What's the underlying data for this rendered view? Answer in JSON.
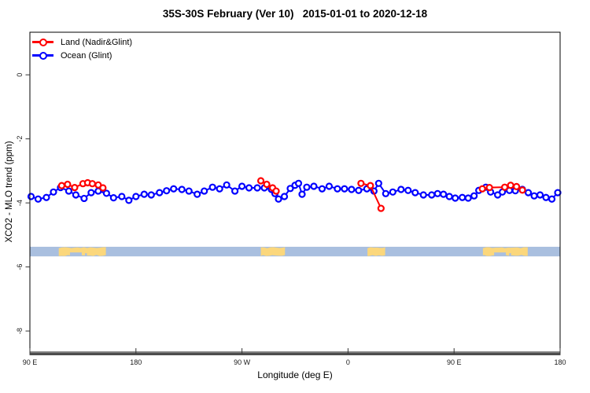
{
  "chart_data": {
    "type": "line",
    "title": "35S-30S February (Ver 10)   2015-01-01 to 2020-12-18",
    "xlabel": "Longitude (deg E)",
    "ylabel": "XCO2 - MLO trend (ppm)",
    "xlim": [
      90,
      540
    ],
    "ylim": [
      -8.66,
      1.33
    ],
    "grid": false,
    "x_ticks": [
      {
        "value": 90,
        "label": "90 E"
      },
      {
        "value": 180,
        "label": "180"
      },
      {
        "value": 270,
        "label": "90 W"
      },
      {
        "value": 360,
        "label": "0"
      },
      {
        "value": 450,
        "label": "90 E"
      },
      {
        "value": 540,
        "label": "180"
      }
    ],
    "y_ticks": [
      {
        "value": 0,
        "label": "0"
      },
      {
        "value": -2,
        "label": "-2"
      },
      {
        "value": -4,
        "label": "-4"
      },
      {
        "value": -6,
        "label": "-6"
      },
      {
        "value": -8,
        "label": "-8"
      }
    ],
    "legend_position": "top-left",
    "legend": [
      {
        "label": "Land (Nadir&Glint)",
        "color": "#FF0000"
      },
      {
        "label": "Ocean (Glint)",
        "color": "#0000FF"
      }
    ],
    "axis_colors": {
      "box": "#000000",
      "baseline": "#4D4D4D",
      "tick_label": "#1A1A1A"
    },
    "marker": {
      "shape": "open-circle",
      "radius": 3.5,
      "stroke_width": 2.2,
      "line_width": 2
    },
    "series": [
      {
        "name": "Ocean (Glint)",
        "color": "#0000FF",
        "segments": [
          [
            [
              91,
              -3.8
            ],
            [
              97,
              -3.88
            ],
            [
              104,
              -3.83
            ],
            [
              110,
              -3.66
            ],
            [
              116,
              -3.52
            ],
            [
              123,
              -3.63
            ],
            [
              129,
              -3.75
            ],
            [
              136,
              -3.86
            ],
            [
              142,
              -3.68
            ],
            [
              148,
              -3.63
            ],
            [
              155,
              -3.7
            ],
            [
              161,
              -3.84
            ],
            [
              168,
              -3.8
            ],
            [
              174,
              -3.92
            ],
            [
              180,
              -3.8
            ],
            [
              187,
              -3.73
            ],
            [
              193,
              -3.75
            ],
            [
              200,
              -3.68
            ],
            [
              206,
              -3.62
            ],
            [
              212,
              -3.56
            ],
            [
              219,
              -3.58
            ],
            [
              225,
              -3.63
            ],
            [
              232,
              -3.73
            ],
            [
              238,
              -3.63
            ],
            [
              245,
              -3.51
            ],
            [
              251,
              -3.56
            ],
            [
              257,
              -3.44
            ],
            [
              264,
              -3.63
            ],
            [
              270,
              -3.48
            ],
            [
              276,
              -3.53
            ],
            [
              283,
              -3.53
            ],
            [
              289,
              -3.53
            ],
            [
              295,
              -3.58
            ],
            [
              298,
              -3.71
            ],
            [
              301,
              -3.88
            ],
            [
              306,
              -3.8
            ],
            [
              311,
              -3.55
            ],
            [
              315,
              -3.45
            ],
            [
              318,
              -3.39
            ],
            [
              321,
              -3.73
            ],
            [
              325,
              -3.51
            ],
            [
              331,
              -3.48
            ],
            [
              338,
              -3.56
            ],
            [
              344,
              -3.48
            ],
            [
              351,
              -3.56
            ],
            [
              357,
              -3.56
            ],
            [
              363,
              -3.58
            ],
            [
              369,
              -3.61
            ],
            [
              376,
              -3.56
            ],
            [
              382,
              -3.63
            ],
            [
              386,
              -3.39
            ],
            [
              392,
              -3.71
            ],
            [
              398,
              -3.66
            ],
            [
              405,
              -3.58
            ],
            [
              411,
              -3.61
            ],
            [
              417,
              -3.68
            ],
            [
              424,
              -3.75
            ],
            [
              431,
              -3.75
            ],
            [
              436,
              -3.71
            ],
            [
              441,
              -3.73
            ],
            [
              446,
              -3.8
            ],
            [
              451,
              -3.85
            ],
            [
              457,
              -3.83
            ],
            [
              462,
              -3.85
            ],
            [
              467,
              -3.78
            ],
            [
              471,
              -3.61
            ],
            [
              477,
              -3.51
            ],
            [
              481,
              -3.66
            ],
            [
              487,
              -3.75
            ],
            [
              491,
              -3.66
            ],
            [
              497,
              -3.61
            ],
            [
              502,
              -3.62
            ],
            [
              508,
              -3.58
            ],
            [
              513,
              -3.68
            ],
            [
              518,
              -3.78
            ],
            [
              523,
              -3.75
            ],
            [
              528,
              -3.83
            ],
            [
              533,
              -3.88
            ],
            [
              538,
              -3.68
            ]
          ]
        ]
      },
      {
        "name": "Land (Nadir&Glint)",
        "color": "#FF0000",
        "segments": [
          [
            [
              117,
              -3.46
            ],
            [
              122,
              -3.42
            ],
            [
              128,
              -3.52
            ],
            [
              135,
              -3.4
            ],
            [
              139,
              -3.37
            ],
            [
              143,
              -3.4
            ],
            [
              148,
              -3.44
            ],
            [
              152,
              -3.53
            ]
          ],
          [
            [
              286,
              -3.31
            ],
            [
              291,
              -3.42
            ],
            [
              296,
              -3.53
            ],
            [
              299,
              -3.63
            ]
          ],
          [
            [
              371,
              -3.39
            ],
            [
              379,
              -3.46
            ],
            [
              388,
              -4.17
            ]
          ],
          [
            [
              474,
              -3.56
            ],
            [
              480,
              -3.52
            ],
            [
              493,
              -3.51
            ],
            [
              498,
              -3.45
            ],
            [
              503,
              -3.49
            ],
            [
              508,
              -3.6
            ]
          ]
        ]
      }
    ],
    "map_strip": {
      "description": "land-ocean mask band for 35S-30S",
      "value_top": -5.37,
      "value_bottom": -5.67,
      "ocean_color": "#A9BFDF",
      "land_color": "#FBD77C",
      "land_patches_lon": [
        [
          114.5,
          154.5
        ],
        [
          286,
          306.5
        ],
        [
          376.5,
          391.5
        ],
        [
          474.5,
          512.5
        ]
      ],
      "ocean_notches": [
        {
          "lon": [
            124,
            134
          ],
          "depth": 5
        },
        {
          "lon": [
            136.8,
            138.4
          ],
          "depth": 4
        },
        {
          "lon": [
            484,
            494
          ],
          "depth": 5
        },
        {
          "lon": [
            496.8,
            498.4
          ],
          "depth": 4
        }
      ]
    }
  }
}
